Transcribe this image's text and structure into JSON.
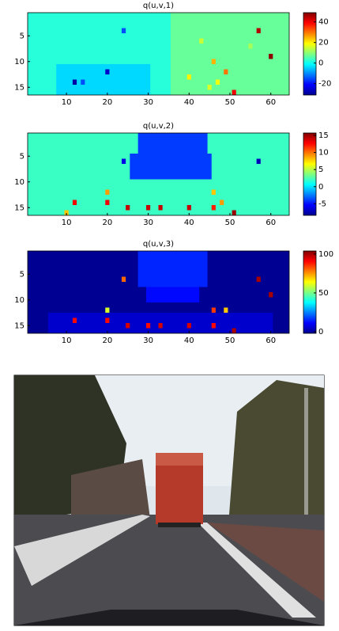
{
  "chart_data": [
    {
      "type": "heatmap",
      "title": "q(u,v,1)",
      "xlim": [
        0.5,
        64.5
      ],
      "ylim": [
        16.5,
        0.5
      ],
      "xticks": [
        10,
        20,
        30,
        40,
        50,
        60
      ],
      "yticks": [
        5,
        10,
        15
      ],
      "clim": [
        -31,
        49
      ],
      "cticks": [
        40,
        20,
        0,
        -20
      ],
      "fill": 2,
      "regions": [
        [
          36,
          1,
          64,
          16,
          7
        ],
        [
          8,
          11,
          30,
          16,
          -4
        ]
      ],
      "cells": [
        [
          57,
          4,
          45
        ],
        [
          60,
          9,
          48
        ],
        [
          46,
          10,
          25
        ],
        [
          49,
          12,
          30
        ],
        [
          40,
          13,
          20
        ],
        [
          51,
          16,
          40
        ],
        [
          12,
          14,
          -28
        ],
        [
          20,
          12,
          -25
        ],
        [
          24,
          4,
          -15
        ],
        [
          14,
          14,
          -15
        ],
        [
          43,
          6,
          15
        ],
        [
          55,
          7,
          12
        ],
        [
          47,
          14,
          18
        ],
        [
          45,
          15,
          16
        ]
      ]
    },
    {
      "type": "heatmap",
      "title": "q(u,v,2)",
      "xlim": [
        0.5,
        64.5
      ],
      "ylim": [
        16.5,
        0.5
      ],
      "xticks": [
        10,
        20,
        30,
        40,
        50,
        60
      ],
      "yticks": [
        5,
        10,
        15
      ],
      "clim": [
        -8.4,
        15.7
      ],
      "cticks": [
        15,
        10,
        5,
        0,
        -5
      ],
      "fill": 2,
      "regions": [
        [
          28,
          1,
          44,
          4,
          -4
        ],
        [
          26,
          5,
          45,
          9,
          -4
        ]
      ],
      "cells": [
        [
          51,
          16,
          15
        ],
        [
          40,
          15,
          14
        ],
        [
          33,
          15,
          14
        ],
        [
          30,
          15,
          14
        ],
        [
          25,
          15,
          14
        ],
        [
          20,
          14,
          13
        ],
        [
          12,
          14,
          13
        ],
        [
          46,
          15,
          12
        ],
        [
          20,
          12,
          9
        ],
        [
          57,
          6,
          -7
        ],
        [
          24,
          6,
          -6
        ],
        [
          48,
          14,
          9
        ],
        [
          46,
          12,
          8
        ],
        [
          10,
          16,
          8
        ]
      ]
    },
    {
      "type": "heatmap",
      "title": "q(u,v,3)",
      "xlim": [
        0.5,
        64.5
      ],
      "ylim": [
        16.5,
        0.5
      ],
      "xticks": [
        10,
        20,
        30,
        40,
        50,
        60
      ],
      "yticks": [
        5,
        10,
        15
      ],
      "clim": [
        -2,
        104
      ],
      "cticks": [
        100,
        50,
        0
      ],
      "fill": 0,
      "regions": [
        [
          28,
          1,
          44,
          7,
          15
        ],
        [
          30,
          8,
          42,
          10,
          12
        ],
        [
          6,
          13,
          60,
          16,
          6
        ]
      ],
      "cells": [
        [
          51,
          16,
          100
        ],
        [
          40,
          15,
          95
        ],
        [
          33,
          15,
          95
        ],
        [
          30,
          15,
          90
        ],
        [
          25,
          15,
          95
        ],
        [
          20,
          14,
          90
        ],
        [
          12,
          14,
          90
        ],
        [
          46,
          15,
          90
        ],
        [
          24,
          6,
          80
        ],
        [
          57,
          6,
          100
        ],
        [
          60,
          9,
          100
        ],
        [
          49,
          12,
          70
        ],
        [
          46,
          12,
          85
        ],
        [
          20,
          12,
          60
        ]
      ]
    }
  ]
}
